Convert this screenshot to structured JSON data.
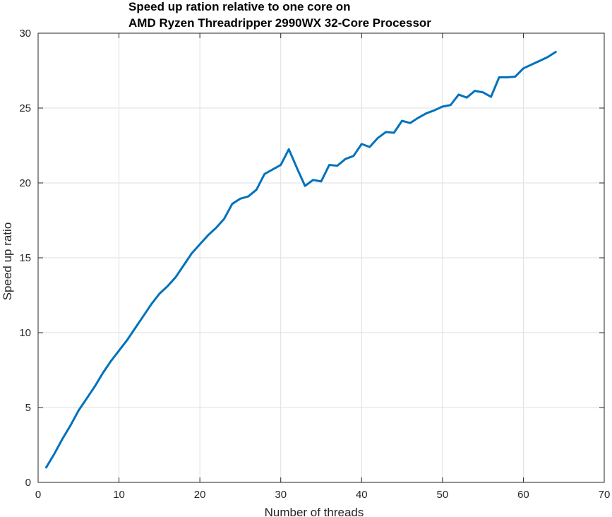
{
  "chart_data": {
    "type": "line",
    "title": [
      "Speed up ration relative to one core on",
      "AMD Ryzen Threadripper 2990WX 32-Core Processor"
    ],
    "xlabel": "Number of threads",
    "ylabel": "Speed up ratio",
    "xlim": [
      0,
      70
    ],
    "ylim": [
      0,
      30
    ],
    "xticks": [
      0,
      10,
      20,
      30,
      40,
      50,
      60,
      70
    ],
    "yticks": [
      0,
      5,
      10,
      15,
      20,
      25,
      30
    ],
    "grid": true,
    "series": [
      {
        "color": "#0072bd",
        "x": [
          1,
          2,
          3,
          4,
          5,
          6,
          7,
          8,
          9,
          10,
          11,
          12,
          13,
          14,
          15,
          16,
          17,
          18,
          19,
          20,
          21,
          22,
          23,
          24,
          25,
          26,
          27,
          28,
          29,
          30,
          31,
          32,
          33,
          34,
          35,
          36,
          37,
          38,
          39,
          40,
          41,
          42,
          43,
          44,
          45,
          46,
          47,
          48,
          49,
          50,
          51,
          52,
          53,
          54,
          55,
          56,
          57,
          58,
          59,
          60,
          61,
          62,
          63,
          64
        ],
        "y": [
          1.0,
          1.9,
          2.9,
          3.8,
          4.8,
          5.6,
          6.4,
          7.3,
          8.1,
          8.8,
          9.5,
          10.3,
          11.1,
          11.9,
          12.6,
          13.1,
          13.7,
          14.5,
          15.3,
          15.9,
          16.5,
          17.0,
          17.6,
          18.6,
          18.95,
          19.1,
          19.55,
          20.6,
          20.9,
          21.2,
          22.25,
          21.0,
          19.8,
          20.2,
          20.1,
          21.2,
          21.15,
          21.6,
          21.8,
          22.6,
          22.4,
          23.0,
          23.4,
          23.35,
          24.15,
          24.0,
          24.35,
          24.65,
          24.85,
          25.1,
          25.2,
          25.9,
          25.7,
          26.15,
          26.05,
          25.75,
          27.05,
          27.05,
          27.1,
          27.65,
          27.9,
          28.15,
          28.4,
          28.75
        ]
      }
    ]
  }
}
